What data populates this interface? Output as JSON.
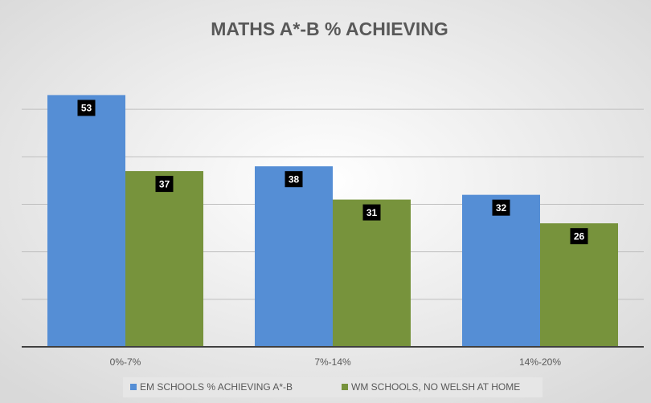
{
  "chart_data": {
    "type": "bar",
    "title": "MATHS A*-B % ACHIEVING",
    "categories": [
      "0%-7%",
      "7%-14%",
      "14%-20%"
    ],
    "series": [
      {
        "name": "EM SCHOOLS % ACHIEVING A*-B",
        "color": "#558ed5",
        "values": [
          53,
          38,
          32
        ]
      },
      {
        "name": "WM SCHOOLS, NO WELSH AT HOME",
        "color": "#77933c",
        "values": [
          37,
          31,
          26
        ]
      }
    ],
    "ylim": [
      0,
      60
    ],
    "yticks": [
      0,
      10,
      20,
      30,
      40,
      50
    ],
    "grid": true,
    "legend": "bottom"
  }
}
